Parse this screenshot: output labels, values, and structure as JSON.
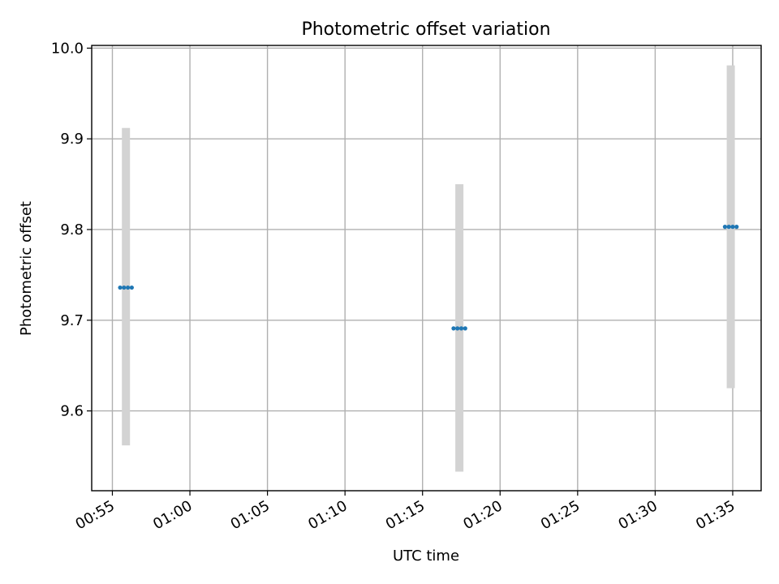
{
  "chart_data": {
    "type": "scatter",
    "title": "Photometric offset variation",
    "xlabel": "UTC time",
    "ylabel": "Photometric offset",
    "x_ticks": [
      "00:55",
      "01:00",
      "01:05",
      "01:10",
      "01:15",
      "01:20",
      "01:25",
      "01:30",
      "01:35"
    ],
    "y_ticks": [
      "9.6",
      "9.7",
      "9.8",
      "9.9",
      "10.0"
    ],
    "xlim": [
      "00:53:40",
      "01:36:50"
    ],
    "ylim": [
      9.512,
      10.003
    ],
    "grid": true,
    "errorbar_color": "#d3d3d3",
    "point_color": "#1f77b4",
    "series": [
      {
        "points": [
          {
            "x": [
              "00:55:30",
              "00:55:45",
              "00:56:00",
              "00:56:15"
            ],
            "y": 9.736,
            "yerr_low": 9.562,
            "yerr_high": 9.912
          },
          {
            "x": [
              "01:17:00",
              "01:17:15",
              "01:17:30",
              "01:17:45"
            ],
            "y": 9.691,
            "yerr_low": 9.533,
            "yerr_high": 9.85
          },
          {
            "x": [
              "01:34:30",
              "01:34:45",
              "01:35:00",
              "01:35:15"
            ],
            "y": 9.803,
            "yerr_low": 9.625,
            "yerr_high": 9.981
          }
        ]
      }
    ]
  }
}
